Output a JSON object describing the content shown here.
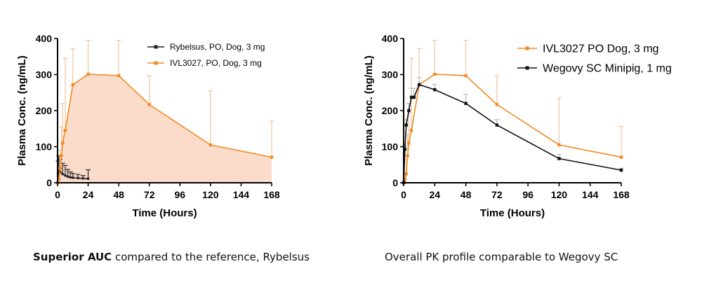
{
  "chart_data": [
    {
      "type": "line",
      "xlabel": "Time (Hours)",
      "ylabel": "Plasma Conc. (ng/mL)",
      "xlim": [
        0,
        168
      ],
      "ylim": [
        0,
        400
      ],
      "xticks": [
        0,
        24,
        48,
        72,
        96,
        120,
        144,
        168
      ],
      "yticks": [
        0,
        100,
        200,
        300,
        400
      ],
      "grid": false,
      "legend_position": "top-right",
      "series": [
        {
          "name": "Rybelsus, PO, Dog, 3 mg",
          "color": "#222222",
          "fill": true,
          "fill_color": "#6e6e6e",
          "x": [
            0,
            0.5,
            1,
            2,
            4,
            6,
            8,
            10,
            12,
            16,
            20,
            24
          ],
          "y": [
            0,
            25,
            35,
            30,
            24,
            20,
            17,
            15,
            14,
            13,
            12,
            11
          ],
          "err": [
            0,
            35,
            40,
            35,
            30,
            28,
            20,
            15,
            12,
            10,
            8,
            25
          ]
        },
        {
          "name": "IVL3027, PO, Dog, 3 mg",
          "color": "#f08a24",
          "fill": true,
          "fill_color": "#fbdccb",
          "x": [
            0,
            1,
            2,
            3,
            4,
            6,
            12,
            24,
            48,
            72,
            120,
            168
          ],
          "y": [
            0,
            10,
            40,
            75,
            110,
            145,
            272,
            301,
            297,
            217,
            105,
            71
          ],
          "err": [
            0,
            15,
            50,
            80,
            110,
            200,
            100,
            105,
            100,
            80,
            150,
            100
          ]
        }
      ]
    },
    {
      "type": "line",
      "xlabel": "Time (Hours)",
      "ylabel": "Plasma Conc. (ng/mL)",
      "xlim": [
        0,
        168
      ],
      "ylim": [
        0,
        400
      ],
      "xticks": [
        0,
        24,
        48,
        72,
        96,
        120,
        144,
        168
      ],
      "yticks": [
        0,
        100,
        200,
        300,
        400
      ],
      "grid": false,
      "legend_position": "top-right",
      "series": [
        {
          "name": "IVL3027 PO  Dog, 3 mg",
          "color": "#f08a24",
          "fill": false,
          "x": [
            0,
            0.5,
            1,
            2,
            3,
            4,
            6,
            12,
            24,
            48,
            72,
            120,
            168
          ],
          "y": [
            0,
            5,
            10,
            25,
            75,
            110,
            145,
            272,
            301,
            297,
            217,
            105,
            71
          ],
          "err": [
            0,
            5,
            10,
            40,
            60,
            110,
            200,
            100,
            105,
            100,
            80,
            130,
            85
          ]
        },
        {
          "name": "Wegovy SC  Minipig, 1 mg",
          "color": "#111111",
          "fill": false,
          "x": [
            0,
            1,
            2,
            4,
            6,
            8,
            12,
            24,
            48,
            72,
            120,
            168
          ],
          "y": [
            0,
            93,
            160,
            200,
            237,
            237,
            272,
            258,
            220,
            160,
            67,
            35
          ],
          "err": [
            0,
            10,
            15,
            20,
            25,
            25,
            20,
            15,
            25,
            15,
            12,
            5
          ]
        }
      ]
    }
  ],
  "captions": {
    "left": {
      "bold": "Superior AUC",
      "rest": " compared to the reference, Rybelsus"
    },
    "right": "Overall PK profile comparable to Wegovy SC"
  }
}
